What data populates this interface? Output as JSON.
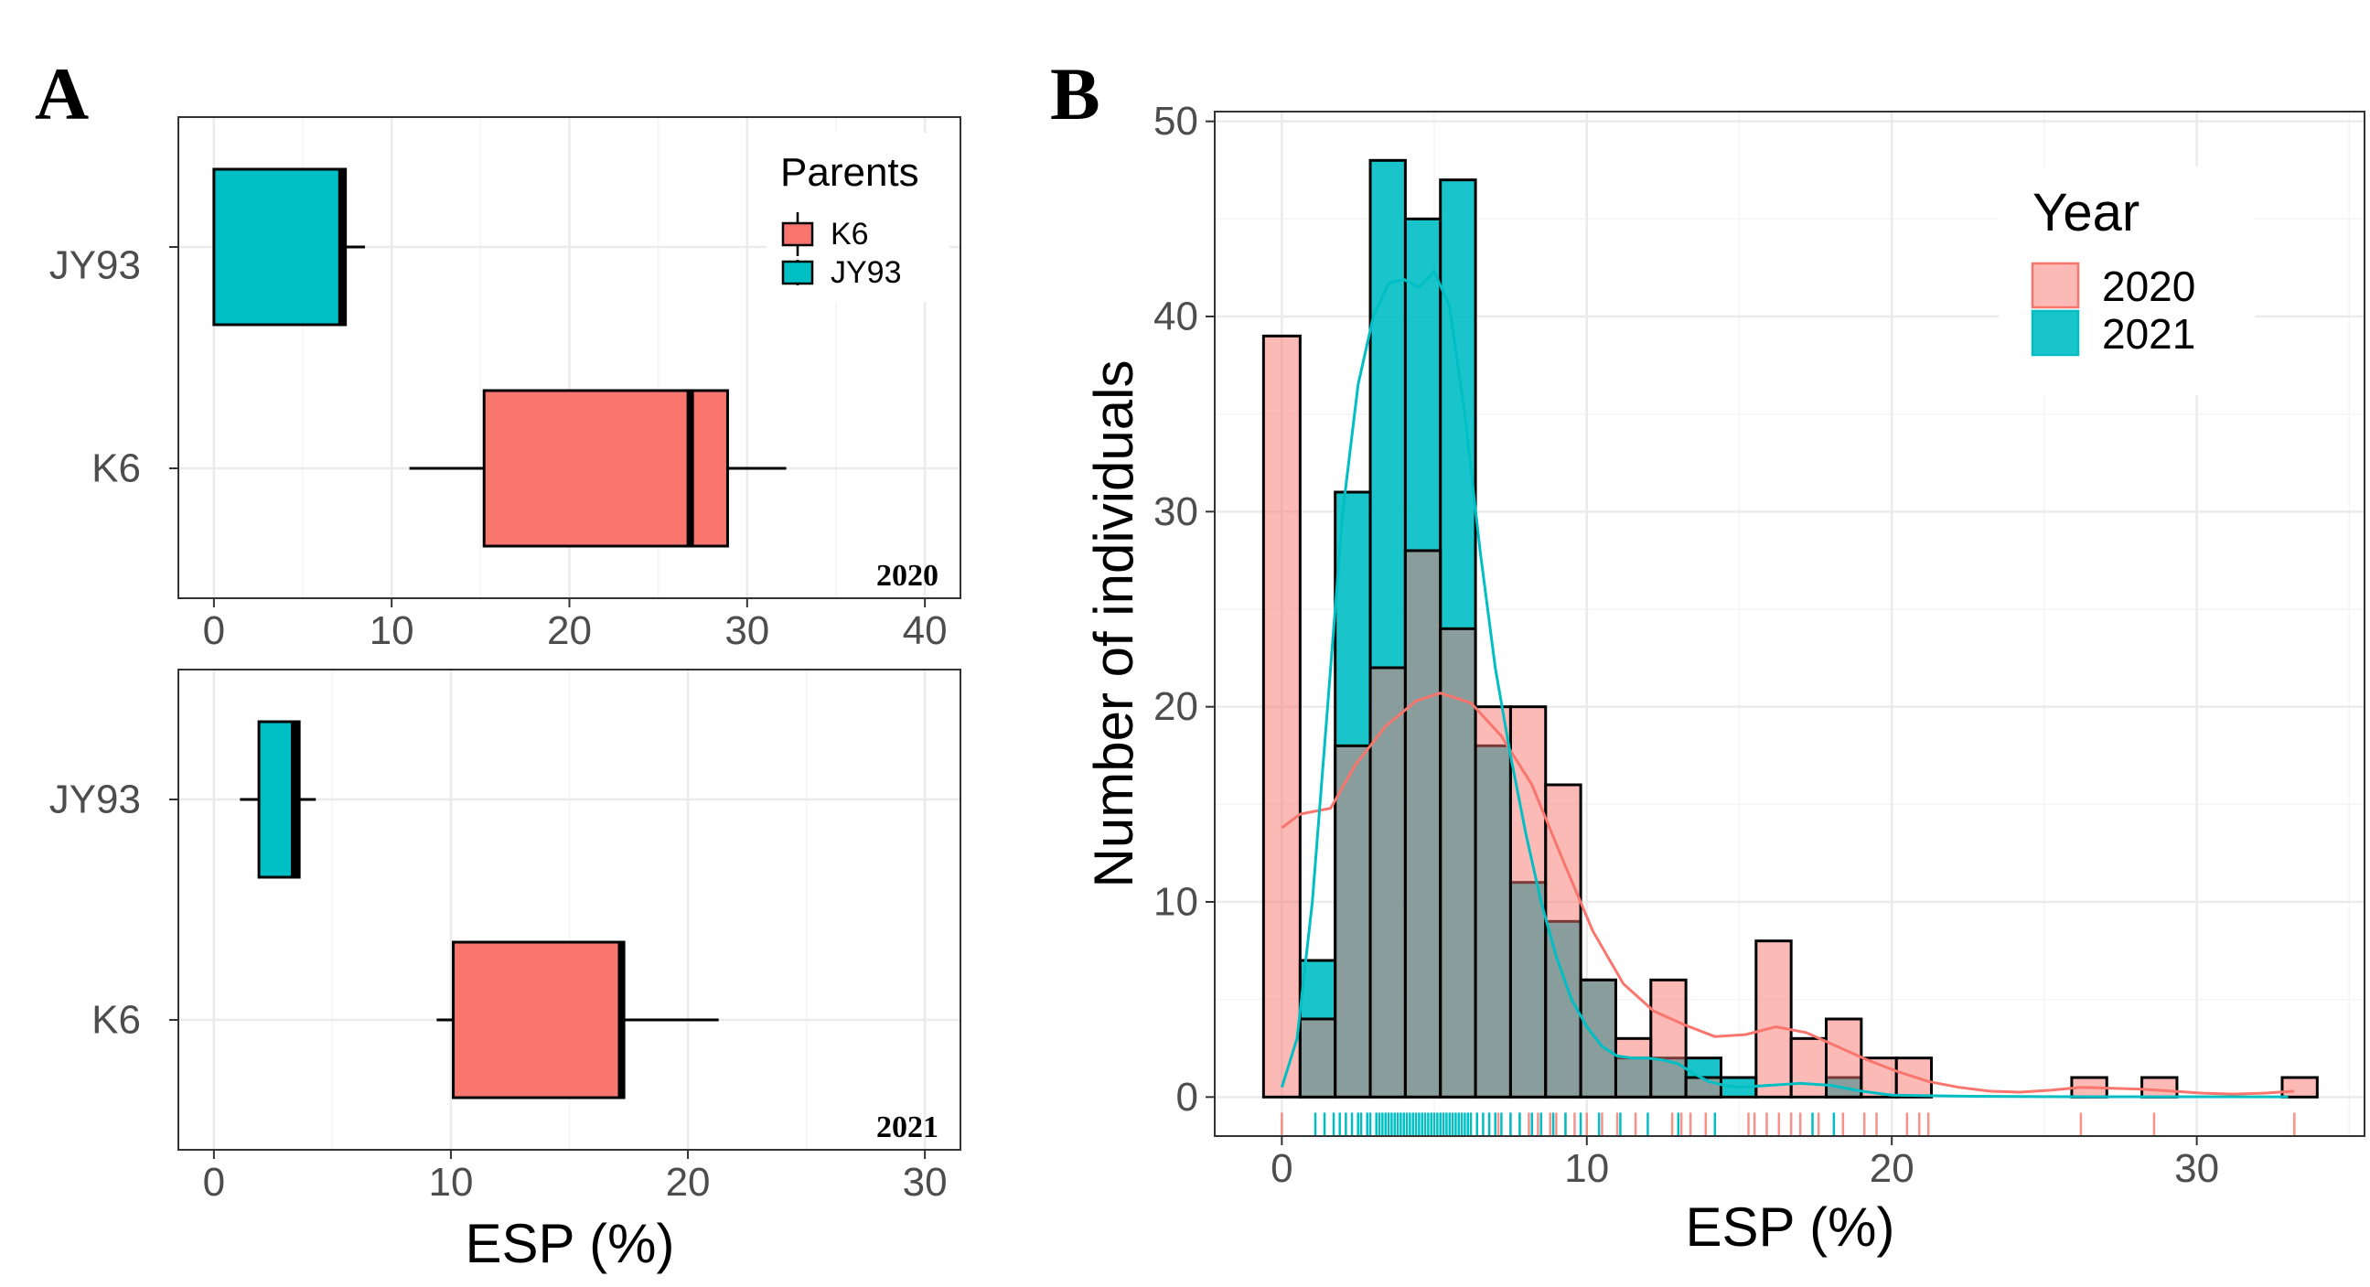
{
  "colors": {
    "k6": "#F8766D",
    "jy93": "#00BFC4",
    "hist2020": "#F8766D",
    "hist2021": "#00BFC4",
    "bar_outline": "#000000"
  },
  "chart_data": [
    {
      "panel": "A",
      "type": "boxplot",
      "orientation": "horizontal",
      "year_label": "2020",
      "categories": [
        "JY93",
        "K6"
      ],
      "xlim": [
        -2,
        42
      ],
      "xticks": [
        0,
        10,
        20,
        30,
        40
      ],
      "tick_labels": [
        "0",
        "10",
        "20",
        "30",
        "40"
      ],
      "boxes": [
        {
          "name": "JY93",
          "whisker_low": 0,
          "q1": 0,
          "median": 7.2,
          "q3": 7.4,
          "whisker_high": 8.5,
          "color_key": "jy93"
        },
        {
          "name": "K6",
          "whisker_low": 11,
          "q1": 15.2,
          "median": 26.8,
          "q3": 28.9,
          "whisker_high": 32.2,
          "color_key": "k6"
        }
      ],
      "legend": {
        "title": "Parents",
        "entries": [
          "K6",
          "JY93"
        ],
        "position": "top-right"
      }
    },
    {
      "panel": "A",
      "type": "boxplot",
      "orientation": "horizontal",
      "year_label": "2021",
      "categories": [
        "JY93",
        "K6"
      ],
      "xlim": [
        -1.5,
        31.5
      ],
      "xticks": [
        0,
        10,
        20,
        30
      ],
      "tick_labels": [
        "0",
        "10",
        "20",
        "30"
      ],
      "xlabel": "ESP (%)",
      "boxes": [
        {
          "name": "JY93",
          "whisker_low": 1.1,
          "q1": 1.9,
          "median": 3.4,
          "q3": 3.6,
          "whisker_high": 4.3,
          "color_key": "jy93"
        },
        {
          "name": "K6",
          "whisker_low": 9.4,
          "q1": 10.1,
          "median": 17.2,
          "q3": 17.3,
          "whisker_high": 21.3,
          "color_key": "k6"
        }
      ]
    },
    {
      "panel": "B",
      "type": "histogram",
      "xlabel": "ESP (%)",
      "ylabel": "Number of individuals",
      "xlim": [
        -2.2,
        35.5
      ],
      "ylim": [
        -2,
        50.5
      ],
      "xticks": [
        0,
        10,
        20,
        30
      ],
      "yticks": [
        0,
        10,
        20,
        30,
        40,
        50
      ],
      "bin_edges": [
        -0.6,
        0.6,
        1.75,
        2.9,
        4.05,
        5.2,
        6.35,
        7.5,
        8.65,
        9.8,
        10.95,
        12.1,
        13.25,
        14.4,
        15.55,
        16.7,
        17.85,
        19.0,
        20.15,
        21.3,
        22.45,
        23.6,
        24.75,
        25.9,
        27.05,
        28.2,
        29.35,
        30.5,
        31.65,
        32.8,
        33.95
      ],
      "legend": {
        "title": "Year",
        "entries": [
          "2020",
          "2021"
        ],
        "position": "top-right"
      },
      "series": [
        {
          "name": "2020",
          "color_key": "hist2020",
          "counts": [
            39,
            4,
            18,
            22,
            28,
            24,
            20,
            20,
            16,
            6,
            3,
            6,
            1,
            0,
            8,
            3,
            4,
            2,
            2,
            0,
            0,
            0,
            0,
            1,
            0,
            1,
            0,
            0,
            0,
            1
          ],
          "density": [
            [
              0,
              13.8
            ],
            [
              0.6,
              14.5
            ],
            [
              1.6,
              14.8
            ],
            [
              2.4,
              17
            ],
            [
              3.4,
              19
            ],
            [
              4.4,
              20.3
            ],
            [
              5.2,
              20.7
            ],
            [
              6.2,
              20.2
            ],
            [
              7.2,
              18.5
            ],
            [
              8.2,
              16
            ],
            [
              9.2,
              12.2
            ],
            [
              10.2,
              8.5
            ],
            [
              11.2,
              5.8
            ],
            [
              12.2,
              4.4
            ],
            [
              13.2,
              3.7
            ],
            [
              14.2,
              3.1
            ],
            [
              15.2,
              3.2
            ],
            [
              16.2,
              3.6
            ],
            [
              17.2,
              3.3
            ],
            [
              18.2,
              2.6
            ],
            [
              19.2,
              1.9
            ],
            [
              20.2,
              1.3
            ],
            [
              21.2,
              0.8
            ],
            [
              22.2,
              0.5
            ],
            [
              23.2,
              0.3
            ],
            [
              24.2,
              0.25
            ],
            [
              25.2,
              0.35
            ],
            [
              26.2,
              0.5
            ],
            [
              27.2,
              0.45
            ],
            [
              28.2,
              0.4
            ],
            [
              29.2,
              0.3
            ],
            [
              30.2,
              0.2
            ],
            [
              31.2,
              0.15
            ],
            [
              32.2,
              0.2
            ],
            [
              33.2,
              0.3
            ]
          ]
        },
        {
          "name": "2021",
          "color_key": "hist2021",
          "counts": [
            0,
            7,
            31,
            48,
            45,
            47,
            18,
            11,
            9,
            6,
            2,
            2,
            2,
            1,
            0,
            0,
            1,
            0,
            0,
            0,
            0,
            0,
            0,
            0,
            0,
            0,
            0,
            0,
            0,
            0
          ],
          "density": [
            [
              0,
              0.5
            ],
            [
              0.5,
              3
            ],
            [
              1.0,
              10
            ],
            [
              1.5,
              20
            ],
            [
              2.0,
              30
            ],
            [
              2.5,
              36.5
            ],
            [
              3.0,
              40
            ],
            [
              3.5,
              41.7
            ],
            [
              4.0,
              41.9
            ],
            [
              4.5,
              41.5
            ],
            [
              5.0,
              42.3
            ],
            [
              5.5,
              40.5
            ],
            [
              6.0,
              35
            ],
            [
              6.5,
              28
            ],
            [
              7.0,
              22
            ],
            [
              7.5,
              17.5
            ],
            [
              8.0,
              13.5
            ],
            [
              8.5,
              10
            ],
            [
              9.0,
              7.2
            ],
            [
              9.5,
              5
            ],
            [
              10.0,
              3.6
            ],
            [
              10.5,
              2.6
            ],
            [
              11.0,
              2.1
            ],
            [
              11.5,
              2
            ],
            [
              12.0,
              2
            ],
            [
              12.5,
              1.9
            ],
            [
              13.0,
              1.7
            ],
            [
              13.5,
              1.2
            ],
            [
              14.0,
              0.8
            ],
            [
              14.5,
              0.6
            ],
            [
              15.0,
              0.5
            ],
            [
              16.0,
              0.6
            ],
            [
              17.0,
              0.7
            ],
            [
              18.0,
              0.6
            ],
            [
              19.0,
              0.3
            ],
            [
              20.0,
              0.1
            ],
            [
              22.0,
              0.05
            ],
            [
              25.0,
              0.02
            ],
            [
              33.0,
              0.01
            ]
          ]
        }
      ],
      "rug_2020": [
        0,
        5.3,
        6.4,
        6.8,
        7.1,
        7.5,
        7.8,
        8.1,
        8.4,
        8.8,
        9.0,
        9.3,
        9.6,
        10.0,
        10.5,
        11.0,
        11.6,
        12.8,
        13.1,
        13.4,
        13.9,
        15.3,
        15.5,
        15.9,
        16.3,
        16.7,
        17.0,
        17.6,
        18.4,
        19.1,
        19.5,
        20.5,
        20.9,
        21.2,
        26.2,
        28.6,
        33.2
      ],
      "rug_2021": [
        1.1,
        1.4,
        1.7,
        1.9,
        2.1,
        2.3,
        2.5,
        2.6,
        2.8,
        2.9,
        3.1,
        3.2,
        3.3,
        3.4,
        3.5,
        3.6,
        3.7,
        3.8,
        3.9,
        4.0,
        4.1,
        4.2,
        4.3,
        4.4,
        4.5,
        4.6,
        4.7,
        4.8,
        4.9,
        5.0,
        5.1,
        5.2,
        5.3,
        5.4,
        5.5,
        5.6,
        5.7,
        5.8,
        5.9,
        6.0,
        6.1,
        6.2,
        6.4,
        6.6,
        6.8,
        7.0,
        7.2,
        7.5,
        7.8,
        8.2,
        8.5,
        8.9,
        9.3,
        9.8,
        10.4,
        11.1,
        12.0,
        13.0,
        14.2,
        17.4,
        18.1
      ]
    }
  ],
  "labels": {
    "panel_a": "A",
    "panel_b": "B",
    "a_year_2020": "2020",
    "a_year_2021": "2021",
    "a_xlabel": "ESP (%)",
    "a_cat_jy93": "JY93",
    "a_cat_k6": "K6",
    "legend_parents_title": "Parents",
    "legend_parents_k6": "K6",
    "legend_parents_jy93": "JY93",
    "b_xlabel": "ESP (%)",
    "b_ylabel": "Number of individuals",
    "legend_year_title": "Year",
    "legend_year_2020": "2020",
    "legend_year_2021": "2021"
  }
}
